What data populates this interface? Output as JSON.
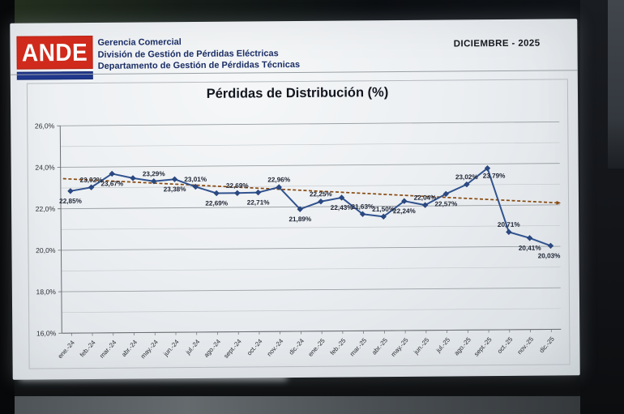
{
  "slide": {
    "logo_text": "ANDE",
    "department_lines": [
      "Gerencia Comercial",
      "División de Gestión de Pérdidas Eléctricas",
      "Departamento de Gestión de Pérdidas Técnicas"
    ],
    "period_label": "DICIEMBRE - 2025",
    "title": "Pérdidas de Distribución (%)"
  },
  "colors": {
    "logo_red": "#cf2a1b",
    "logo_blue": "#20388c",
    "header_text": "#1c2f66",
    "line_blue": "#31538f",
    "marker_blue": "#2b4a84",
    "trend_brown": "#87490f",
    "grid_major": "#9aa0a4",
    "grid_minor": "#c6cacd",
    "axis": "#6a6e73",
    "tick_text": "#2b2e33",
    "data_label_text": "#1d2434"
  },
  "chart_data": {
    "type": "line",
    "title": "Pérdidas de Distribución (%)",
    "categories": [
      "ene.-24",
      "feb.-24",
      "mar.-24",
      "abr.-24",
      "may.-24",
      "jun.-24",
      "jul.-24",
      "ago.-24",
      "sept.-24",
      "oct.-24",
      "nov.-24",
      "dic.-24",
      "ene.-25",
      "feb.-25",
      "mar.-25",
      "abr.-25",
      "may.-25",
      "jun.-25",
      "jul.-25",
      "ago.-25",
      "sept.-25",
      "oct.-25",
      "nov.-25",
      "dic.-25"
    ],
    "series": [
      {
        "name": "Pérdidas de Distribución (%)",
        "marker": "diamond",
        "values": [
          22.85,
          23.02,
          23.67,
          23.45,
          23.29,
          23.38,
          23.01,
          22.69,
          22.69,
          22.71,
          22.96,
          21.89,
          22.25,
          22.43,
          21.63,
          21.5,
          22.24,
          22.04,
          22.57,
          23.02,
          23.79,
          20.71,
          20.41,
          20.03
        ],
        "data_labels": [
          "22,85%",
          "23,02%",
          "23,67%",
          "",
          "23,29%",
          "23,38%",
          "23,01%",
          "22,69%",
          "22,69%",
          "22,71%",
          "22,96%",
          "21,89%",
          "22,25%",
          "22,43%",
          "21,63%",
          "21,50%",
          "22,24%",
          "22,04%",
          "22,57%",
          "23,02%",
          "23,79%",
          "20,71%",
          "20,41%",
          "20,03%"
        ],
        "label_positions": [
          "below",
          "above",
          "below",
          "none",
          "above",
          "below",
          "above",
          "below",
          "above",
          "below",
          "above",
          "below",
          "above",
          "below",
          "above",
          "above",
          "below",
          "above",
          "below",
          "above",
          "below",
          "above",
          "below",
          "below"
        ]
      }
    ],
    "trendline": {
      "style": "dashed",
      "arrow": true,
      "start_value": 23.45,
      "end_value": 22.1
    },
    "ylim": [
      16,
      26
    ],
    "ytick_labels": [
      "16,0%",
      "18,0%",
      "20,0%",
      "22,0%",
      "24,0%",
      "26,0%"
    ],
    "grid": {
      "major_step": 2,
      "minor_step": 1,
      "horizontal_only": true
    },
    "legend": "none",
    "xlabel": "",
    "ylabel": ""
  }
}
